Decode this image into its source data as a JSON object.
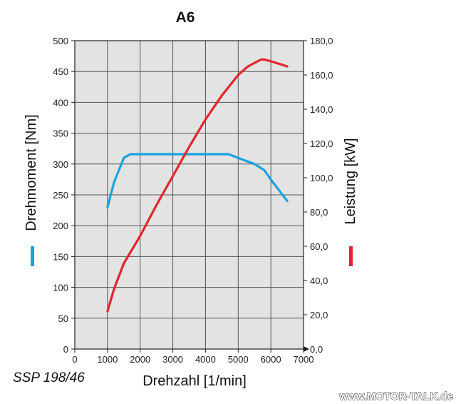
{
  "chart_data": {
    "type": "line",
    "title": "A6",
    "xlabel": "Drehzahl [1/min]",
    "ylabel_left": "Drehmoment [Nm]",
    "ylabel_right": "Leistung [kW]",
    "xlim": [
      0,
      7000
    ],
    "ylim_left": [
      0,
      500
    ],
    "ylim_right": [
      0,
      180
    ],
    "x_ticks": [
      "0",
      "1000",
      "2000",
      "3000",
      "4000",
      "5000",
      "6000",
      "7000"
    ],
    "y_left_ticks": [
      "0",
      "50",
      "100",
      "150",
      "200",
      "250",
      "300",
      "350",
      "400",
      "450",
      "500"
    ],
    "y_right_ticks": [
      "0,0",
      "20,0",
      "40,0",
      "60,0",
      "80,0",
      "100,0",
      "120,0",
      "140,0",
      "160,0",
      "180,0"
    ],
    "grid": true,
    "series": [
      {
        "axis": "left",
        "color": "#1aa3dd",
        "legend_marker": "left",
        "x": [
          1000,
          1200,
          1500,
          1700,
          2000,
          3000,
          4000,
          4700,
          5000,
          5500,
          5800,
          6000,
          6500
        ],
        "values": [
          230,
          270,
          310,
          316,
          316,
          316,
          316,
          316,
          310,
          300,
          290,
          275,
          240
        ]
      },
      {
        "axis": "right",
        "color": "#e1262c",
        "legend_marker": "right",
        "x": [
          1000,
          1200,
          1500,
          2000,
          2500,
          3000,
          3500,
          4000,
          4500,
          5000,
          5300,
          5600,
          5700,
          5800,
          6000,
          6500
        ],
        "values": [
          22,
          35,
          50,
          66,
          84,
          101,
          118,
          134,
          148,
          160,
          165,
          168,
          169,
          169,
          168,
          165
        ]
      }
    ]
  },
  "source_label": "SSP 198/46",
  "watermark": "www.MOTOR-TALK.de"
}
